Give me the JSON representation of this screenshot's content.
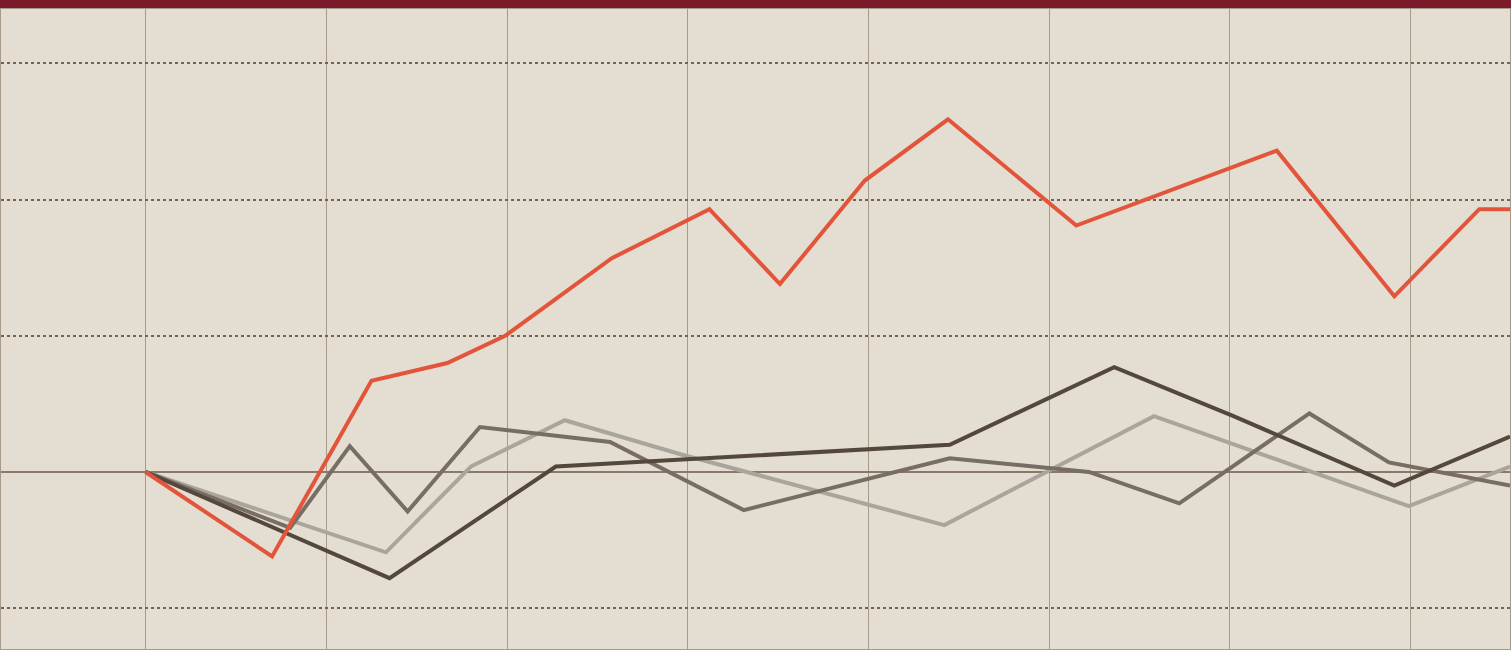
{
  "chart_data": {
    "type": "line",
    "xlim": [
      -0.8,
      7.55
    ],
    "xticks": [
      0,
      1,
      2,
      3,
      4,
      5,
      6,
      7
    ],
    "ylim": [
      -1.3,
      3.4
    ],
    "yticks": [
      -1,
      0,
      1,
      2,
      3
    ],
    "grid": true,
    "tick_labels": false,
    "series": [
      {
        "color": "#a9a59d",
        "x": [
          0,
          1.33,
          1.8,
          2.32,
          2.96,
          4.42,
          5.58,
          6.99,
          7.55
        ],
        "values": [
          0,
          -0.59,
          0.04,
          0.38,
          0.13,
          -0.39,
          0.41,
          -0.25,
          0.04
        ]
      },
      {
        "color": "#776d64",
        "x": [
          0,
          0.8,
          1.13,
          1.45,
          1.85,
          2.57,
          3.31,
          4.45,
          5.22,
          5.72,
          6.44,
          6.88,
          7.55
        ],
        "values": [
          0,
          -0.41,
          0.19,
          -0.29,
          0.33,
          0.22,
          -0.28,
          0.1,
          0,
          -0.23,
          0.43,
          0.07,
          -0.1
        ]
      },
      {
        "color": "#54473b",
        "x": [
          0,
          1.35,
          2.27,
          4.45,
          5.36,
          6.02,
          6.91,
          7.55
        ],
        "values": [
          0,
          -0.78,
          0.04,
          0.2,
          0.77,
          0.41,
          -0.1,
          0.26
        ]
      },
      {
        "color": "#e2553b",
        "x": [
          0,
          0.7,
          1.25,
          1.67,
          1.99,
          2.58,
          3.12,
          3.51,
          3.98,
          4.44,
          5.15,
          6.26,
          6.91,
          7.38,
          7.55
        ],
        "values": [
          0,
          -0.62,
          0.67,
          0.8,
          1.0,
          1.57,
          1.93,
          1.38,
          2.14,
          2.59,
          1.81,
          2.36,
          1.29,
          1.93,
          1.93
        ]
      }
    ]
  }
}
